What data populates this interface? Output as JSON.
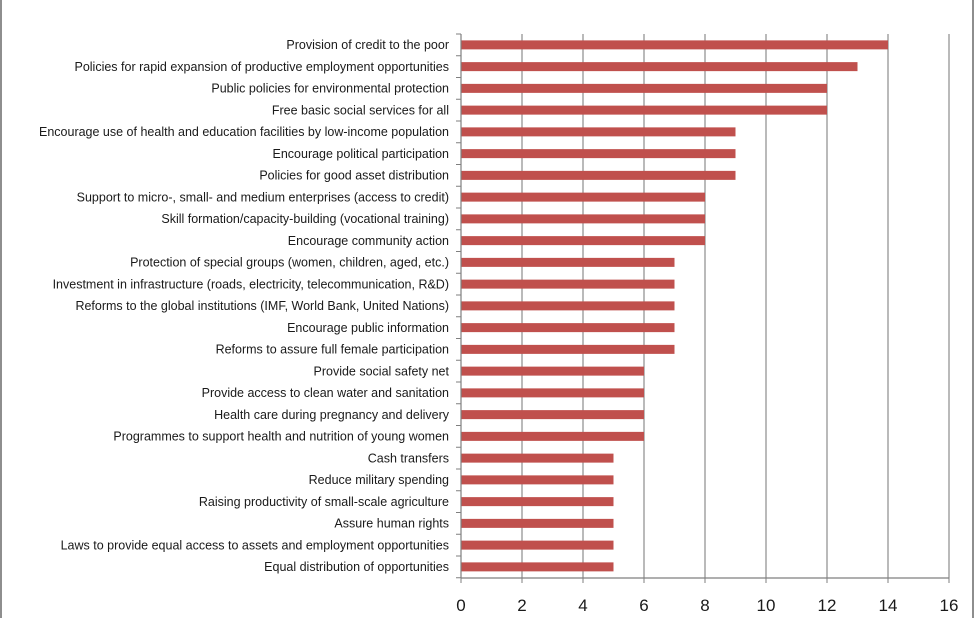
{
  "chart_data": {
    "type": "bar",
    "orientation": "horizontal",
    "title": "",
    "xlabel": "",
    "ylabel": "",
    "xlim": [
      0,
      16
    ],
    "x_ticks": [
      "0",
      "2",
      "4",
      "6",
      "8",
      "10",
      "12",
      "14",
      "16"
    ],
    "grid": "vertical major gridlines",
    "legend": "none",
    "bar_color": "#c0504d",
    "categories": [
      "Provision of credit to the poor",
      "Policies for rapid expansion of productive employment opportunities",
      "Public policies for environmental protection",
      "Free basic social services for all",
      "Encourage use of health and education facilities by low-income population",
      "Encourage political participation",
      "Policies for good asset distribution",
      "Support to micro-, small- and medium enterprises (access to credit)",
      "Skill formation/capacity-building (vocational training)",
      "Encourage community action",
      "Protection of special groups (women, children, aged, etc.)",
      "Investment in infrastructure (roads, electricity, telecommunication, R&D)",
      "Reforms to the global institutions (IMF, World Bank, United Nations)",
      "Encourage public information",
      "Reforms to assure full female participation",
      "Provide social safety net",
      "Provide access to clean water and sanitation",
      "Health care during pregnancy and delivery",
      "Programmes to support health and nutrition of young women",
      "Cash transfers",
      "Reduce military spending",
      "Raising productivity of small-scale agriculture",
      "Assure human rights",
      "Laws to provide equal access to assets and employment opportunities",
      "Equal distribution of opportunities"
    ],
    "values": [
      14,
      13,
      12,
      12,
      9,
      9,
      9,
      8,
      8,
      8,
      7,
      7,
      7,
      7,
      7,
      6,
      6,
      6,
      6,
      5,
      5,
      5,
      5,
      5,
      5
    ]
  }
}
